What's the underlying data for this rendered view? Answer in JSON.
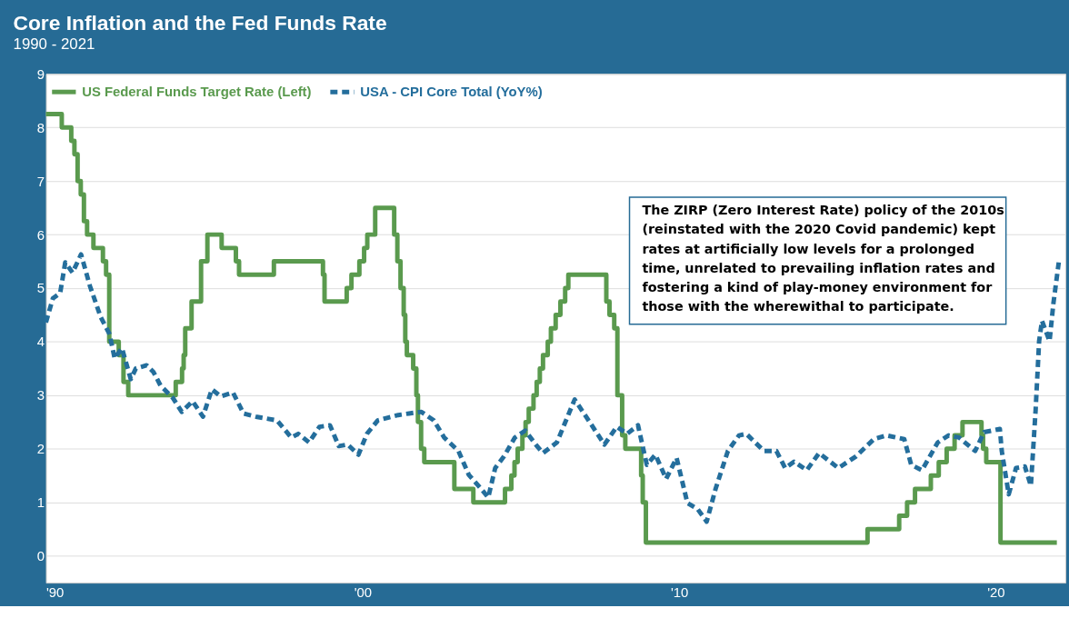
{
  "chart_data": {
    "type": "line",
    "title": "Core Inflation and the Fed Funds Rate",
    "subtitle": "1990 - 2021",
    "annotations": [
      "The ZIRP (Zero Interest Rate) policy of the 2010s (reinstated with the 2020 Covid pandemic) kept rates at artificially low levels for a prolonged time, unrelated to prevailing inflation rates and fostering a kind of play-money environment for those with the wherewithal to participate."
    ],
    "xlim": [
      1990,
      2022.2
    ],
    "xticks": [
      {
        "value": 1990,
        "label": "'90"
      },
      {
        "value": 2000,
        "label": "'00"
      },
      {
        "value": 2010,
        "label": "'10"
      },
      {
        "value": 2020,
        "label": "'20"
      }
    ],
    "ylim": [
      -0.5,
      9
    ],
    "yticks": [
      0,
      1,
      2,
      3,
      4,
      5,
      6,
      7,
      8,
      9
    ],
    "grid": "y",
    "legend": "top left",
    "series": [
      {
        "name": "US Federal Funds Target Rate (Left)",
        "type": "step",
        "line_style": "solid",
        "color": "#5a9a4e",
        "x": [
          1990.0,
          1990.5,
          1990.8,
          1990.9,
          1991.0,
          1991.1,
          1991.2,
          1991.3,
          1991.5,
          1991.8,
          1991.9,
          1992.0,
          1992.3,
          1992.45,
          1992.6,
          1994.1,
          1994.3,
          1994.35,
          1994.4,
          1994.6,
          1994.9,
          1995.1,
          1995.55,
          1996.0,
          1996.1,
          1997.2,
          1998.75,
          1998.8,
          1998.9,
          1999.5,
          1999.65,
          1999.9,
          2000.05,
          2000.15,
          2000.4,
          2001.0,
          2001.1,
          2001.2,
          2001.3,
          2001.35,
          2001.4,
          2001.6,
          2001.7,
          2001.75,
          2001.85,
          2001.95,
          2002.9,
          2003.5,
          2004.5,
          2004.7,
          2004.8,
          2004.9,
          2005.05,
          2005.15,
          2005.25,
          2005.4,
          2005.5,
          2005.6,
          2005.7,
          2005.85,
          2005.95,
          2006.1,
          2006.25,
          2006.4,
          2006.5,
          2007.7,
          2007.8,
          2007.95,
          2008.05,
          2008.2,
          2008.3,
          2008.8,
          2008.85,
          2008.95,
          2015.95,
          2016.95,
          2017.2,
          2017.45,
          2017.95,
          2018.2,
          2018.45,
          2018.7,
          2018.95,
          2019.55,
          2019.6,
          2019.7,
          2020.15,
          2021.93
        ],
        "values": [
          8.25,
          8.0,
          7.75,
          7.5,
          7.0,
          6.75,
          6.25,
          6.0,
          5.75,
          5.5,
          5.25,
          4.0,
          3.75,
          3.25,
          3.0,
          3.25,
          3.5,
          3.75,
          4.25,
          4.75,
          5.5,
          6.0,
          5.75,
          5.5,
          5.25,
          5.5,
          5.25,
          4.75,
          4.75,
          5.0,
          5.25,
          5.5,
          5.75,
          6.0,
          6.5,
          6.0,
          5.5,
          5.0,
          4.5,
          4.0,
          3.75,
          3.5,
          3.0,
          2.5,
          2.0,
          1.75,
          1.25,
          1.0,
          1.25,
          1.5,
          1.75,
          2.0,
          2.25,
          2.5,
          2.75,
          3.0,
          3.25,
          3.5,
          3.75,
          4.0,
          4.25,
          4.5,
          4.75,
          5.0,
          5.25,
          4.75,
          4.5,
          4.25,
          3.0,
          2.25,
          2.0,
          1.5,
          1.0,
          0.25,
          0.5,
          0.75,
          1.0,
          1.25,
          1.5,
          1.75,
          2.0,
          2.25,
          2.5,
          2.25,
          2.0,
          1.75,
          0.25,
          0.25
        ]
      },
      {
        "name": "USA - CPI Core Total (YoY%)",
        "type": "line",
        "line_style": "dashed",
        "color": "#246e9c",
        "x": [
          1990.0,
          1990.22,
          1990.45,
          1990.61,
          1990.84,
          1991.11,
          1991.39,
          1991.73,
          1992.01,
          1992.17,
          1992.4,
          1992.68,
          1992.84,
          1993.18,
          1993.4,
          1993.62,
          1994.01,
          1994.29,
          1994.63,
          1994.96,
          1995.24,
          1995.52,
          1995.91,
          1996.24,
          1996.63,
          1997.3,
          1997.75,
          1997.97,
          1998.31,
          1998.64,
          1998.97,
          1999.25,
          1999.53,
          1999.87,
          2000.14,
          2000.48,
          2000.8,
          2001.13,
          2001.47,
          2001.86,
          2002.25,
          2002.58,
          2003.03,
          2003.36,
          2003.75,
          2003.97,
          2004.19,
          2004.47,
          2004.81,
          2005.14,
          2005.47,
          2005.7,
          2006.14,
          2006.7,
          2007.14,
          2007.64,
          2008.03,
          2008.36,
          2008.7,
          2008.98,
          2009.25,
          2009.59,
          2009.92,
          2010.26,
          2010.59,
          2010.87,
          2011.15,
          2011.54,
          2011.89,
          2012.12,
          2012.68,
          2013.07,
          2013.35,
          2013.63,
          2014.03,
          2014.42,
          2015.03,
          2015.59,
          2016.15,
          2016.55,
          2017.11,
          2017.33,
          2017.67,
          2018.17,
          2018.51,
          2018.84,
          2019.35,
          2019.63,
          2020.13,
          2020.19,
          2020.41,
          2020.64,
          2020.92,
          2021.11,
          2021.26,
          2021.37,
          2021.46,
          2021.7,
          2021.82,
          2021.99
        ],
        "values": [
          4.36,
          4.81,
          4.91,
          5.48,
          5.29,
          5.63,
          5.04,
          4.46,
          4.14,
          3.69,
          3.88,
          3.3,
          3.5,
          3.56,
          3.43,
          3.18,
          2.95,
          2.69,
          2.89,
          2.6,
          3.11,
          2.98,
          3.05,
          2.66,
          2.6,
          2.53,
          2.21,
          2.28,
          2.12,
          2.41,
          2.44,
          2.05,
          2.08,
          1.89,
          2.28,
          2.53,
          2.58,
          2.63,
          2.66,
          2.69,
          2.53,
          2.21,
          1.96,
          1.51,
          1.25,
          1.09,
          1.64,
          1.86,
          2.21,
          2.34,
          2.08,
          1.92,
          2.12,
          2.92,
          2.53,
          2.08,
          2.41,
          2.28,
          2.44,
          1.7,
          1.89,
          1.44,
          1.83,
          0.99,
          0.87,
          0.64,
          1.25,
          1.96,
          2.25,
          2.28,
          1.96,
          1.96,
          1.64,
          1.76,
          1.6,
          1.92,
          1.64,
          1.86,
          2.18,
          2.25,
          2.18,
          1.7,
          1.6,
          2.12,
          2.25,
          2.21,
          1.96,
          2.31,
          2.37,
          1.96,
          1.15,
          1.64,
          1.67,
          1.31,
          2.73,
          4.01,
          4.39,
          4.01,
          4.71,
          5.48
        ]
      }
    ]
  }
}
